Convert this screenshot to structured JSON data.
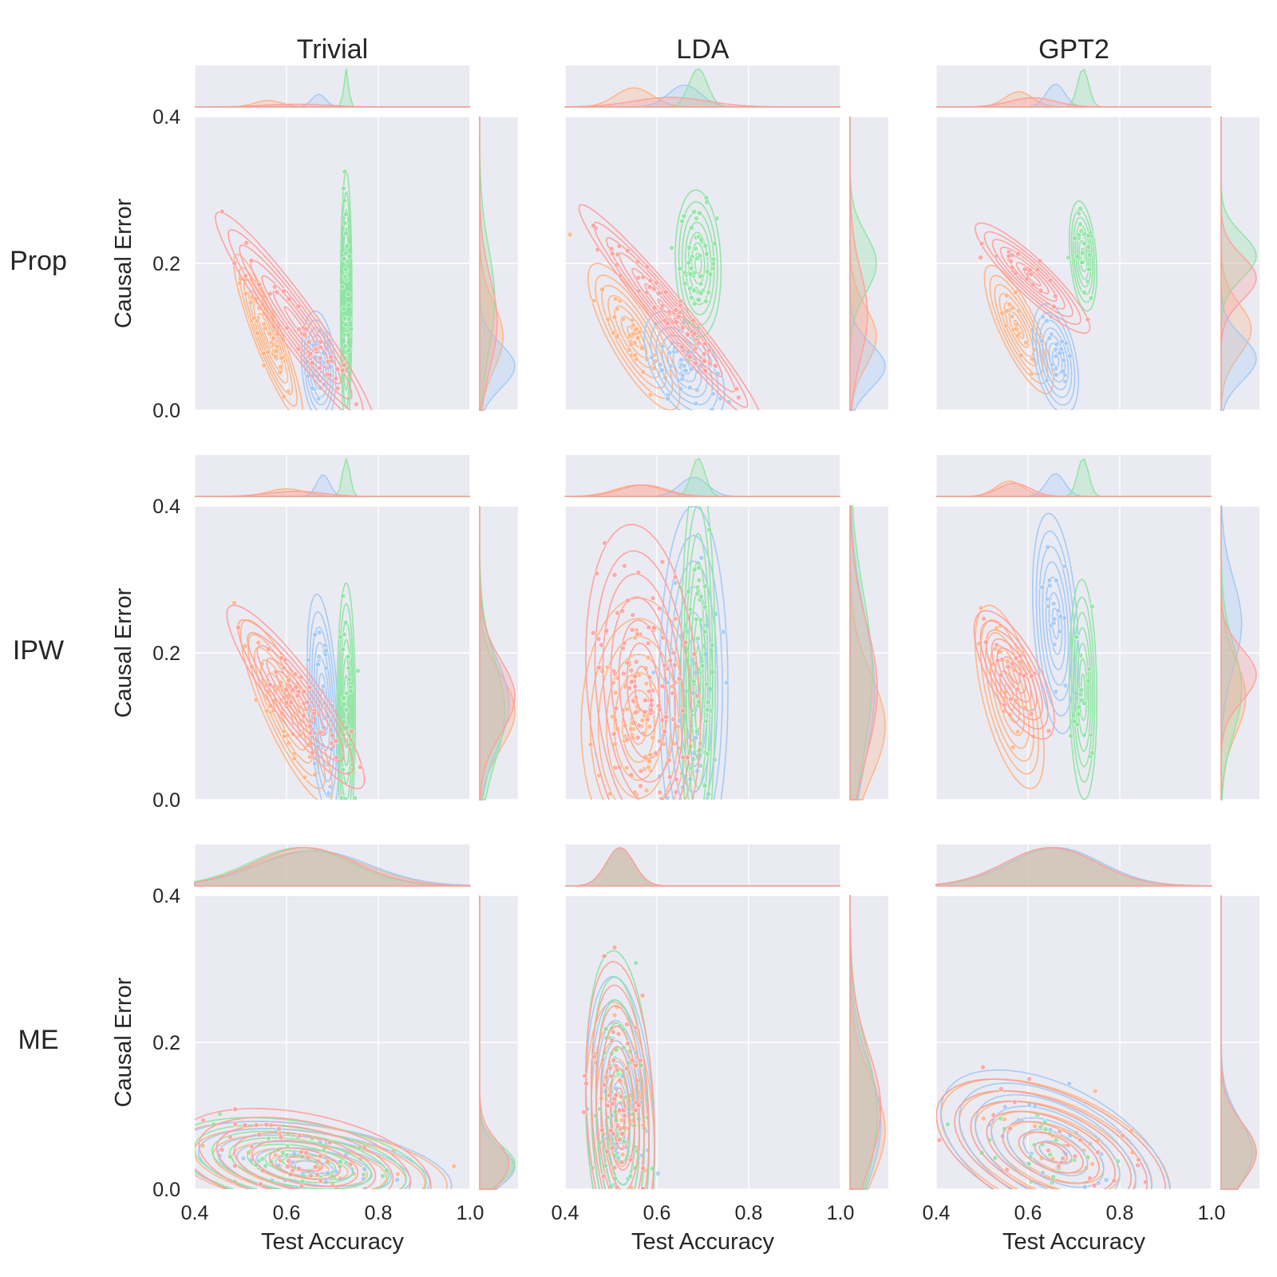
{
  "chart_data": {
    "type": "jointplot-grid",
    "columns": [
      "Trivial",
      "LDA",
      "GPT2"
    ],
    "rows": [
      "Prop",
      "IPW",
      "ME"
    ],
    "xlabel": "Test Accuracy",
    "ylabel": "Causal Error",
    "xlim": [
      0.4,
      1.0
    ],
    "ylim": [
      0.0,
      0.4
    ],
    "xticks": [
      "0.4",
      "0.6",
      "0.8",
      "1.0"
    ],
    "yticks": [
      "0.0",
      "0.2",
      "0.4"
    ],
    "palette": {
      "orange": "#ffb482",
      "blue": "#a1c9f4",
      "green": "#8de5a1",
      "red": "#ff9f9b"
    },
    "panels": [
      {
        "row": "Prop",
        "col": "Trivial",
        "clusters": [
          {
            "color": "orange",
            "cx": 0.56,
            "cy": 0.1,
            "sx": 0.03,
            "sy": 0.045,
            "rho": -0.9,
            "n": 40
          },
          {
            "color": "blue",
            "cx": 0.67,
            "cy": 0.06,
            "sx": 0.015,
            "sy": 0.03,
            "rho": -0.2,
            "n": 30
          },
          {
            "color": "green",
            "cx": 0.73,
            "cy": 0.15,
            "sx": 0.005,
            "sy": 0.07,
            "rho": 0.0,
            "n": 30
          },
          {
            "color": "red",
            "cx": 0.62,
            "cy": 0.12,
            "sx": 0.07,
            "sy": 0.06,
            "rho": -0.95,
            "n": 40
          }
        ]
      },
      {
        "row": "Prop",
        "col": "LDA",
        "clusters": [
          {
            "color": "orange",
            "cx": 0.55,
            "cy": 0.1,
            "sx": 0.04,
            "sy": 0.04,
            "rho": -0.8,
            "n": 40
          },
          {
            "color": "blue",
            "cx": 0.66,
            "cy": 0.06,
            "sx": 0.035,
            "sy": 0.03,
            "rho": -0.5,
            "n": 50
          },
          {
            "color": "green",
            "cx": 0.69,
            "cy": 0.2,
            "sx": 0.02,
            "sy": 0.04,
            "rho": -0.1,
            "n": 60
          },
          {
            "color": "red",
            "cx": 0.63,
            "cy": 0.13,
            "sx": 0.08,
            "sy": 0.06,
            "rho": -0.97,
            "n": 70
          }
        ]
      },
      {
        "row": "Prop",
        "col": "GPT2",
        "clusters": [
          {
            "color": "orange",
            "cx": 0.58,
            "cy": 0.11,
            "sx": 0.03,
            "sy": 0.035,
            "rho": -0.8,
            "n": 25
          },
          {
            "color": "blue",
            "cx": 0.66,
            "cy": 0.07,
            "sx": 0.02,
            "sy": 0.03,
            "rho": -0.4,
            "n": 25
          },
          {
            "color": "green",
            "cx": 0.72,
            "cy": 0.21,
            "sx": 0.012,
            "sy": 0.03,
            "rho": -0.3,
            "n": 25
          },
          {
            "color": "red",
            "cx": 0.61,
            "cy": 0.18,
            "sx": 0.05,
            "sy": 0.03,
            "rho": -0.9,
            "n": 25
          }
        ]
      },
      {
        "row": "IPW",
        "col": "Trivial",
        "clusters": [
          {
            "color": "orange",
            "cx": 0.6,
            "cy": 0.12,
            "sx": 0.04,
            "sy": 0.05,
            "rho": -0.85,
            "n": 40
          },
          {
            "color": "blue",
            "cx": 0.68,
            "cy": 0.13,
            "sx": 0.014,
            "sy": 0.06,
            "rho": -0.4,
            "n": 30
          },
          {
            "color": "green",
            "cx": 0.73,
            "cy": 0.12,
            "sx": 0.008,
            "sy": 0.07,
            "rho": 0.0,
            "n": 30
          },
          {
            "color": "red",
            "cx": 0.62,
            "cy": 0.14,
            "sx": 0.06,
            "sy": 0.05,
            "rho": -0.9,
            "n": 35
          }
        ]
      },
      {
        "row": "IPW",
        "col": "LDA",
        "clusters": [
          {
            "color": "orange",
            "cx": 0.56,
            "cy": 0.1,
            "sx": 0.05,
            "sy": 0.07,
            "rho": 0.0,
            "n": 80
          },
          {
            "color": "blue",
            "cx": 0.68,
            "cy": 0.15,
            "sx": 0.03,
            "sy": 0.1,
            "rho": 0.0,
            "n": 40
          },
          {
            "color": "green",
            "cx": 0.69,
            "cy": 0.17,
            "sx": 0.015,
            "sy": 0.11,
            "rho": 0.0,
            "n": 50
          },
          {
            "color": "red",
            "cx": 0.57,
            "cy": 0.15,
            "sx": 0.05,
            "sy": 0.09,
            "rho": -0.2,
            "n": 100
          }
        ]
      },
      {
        "row": "IPW",
        "col": "GPT2",
        "clusters": [
          {
            "color": "orange",
            "cx": 0.56,
            "cy": 0.14,
            "sx": 0.03,
            "sy": 0.05,
            "rho": -0.6,
            "n": 20
          },
          {
            "color": "blue",
            "cx": 0.66,
            "cy": 0.24,
            "sx": 0.02,
            "sy": 0.06,
            "rho": -0.3,
            "n": 20
          },
          {
            "color": "green",
            "cx": 0.72,
            "cy": 0.15,
            "sx": 0.012,
            "sy": 0.06,
            "rho": -0.1,
            "n": 20
          },
          {
            "color": "red",
            "cx": 0.57,
            "cy": 0.17,
            "sx": 0.035,
            "sy": 0.035,
            "rho": -0.7,
            "n": 20
          }
        ]
      },
      {
        "row": "ME",
        "col": "Trivial",
        "clusters": [
          {
            "color": "orange",
            "cx": 0.65,
            "cy": 0.03,
            "sx": 0.12,
            "sy": 0.025,
            "rho": -0.4,
            "n": 35
          },
          {
            "color": "blue",
            "cx": 0.66,
            "cy": 0.03,
            "sx": 0.12,
            "sy": 0.025,
            "rho": -0.4,
            "n": 30
          },
          {
            "color": "green",
            "cx": 0.63,
            "cy": 0.035,
            "sx": 0.11,
            "sy": 0.025,
            "rho": -0.4,
            "n": 35
          },
          {
            "color": "red",
            "cx": 0.64,
            "cy": 0.035,
            "sx": 0.11,
            "sy": 0.03,
            "rho": -0.4,
            "n": 40
          }
        ]
      },
      {
        "row": "ME",
        "col": "LDA",
        "clusters": [
          {
            "color": "orange",
            "cx": 0.52,
            "cy": 0.08,
            "sx": 0.03,
            "sy": 0.07,
            "rho": -0.2,
            "n": 50
          },
          {
            "color": "blue",
            "cx": 0.52,
            "cy": 0.09,
            "sx": 0.03,
            "sy": 0.08,
            "rho": -0.2,
            "n": 40
          },
          {
            "color": "green",
            "cx": 0.52,
            "cy": 0.1,
            "sx": 0.03,
            "sy": 0.09,
            "rho": -0.2,
            "n": 50
          },
          {
            "color": "red",
            "cx": 0.52,
            "cy": 0.11,
            "sx": 0.03,
            "sy": 0.08,
            "rho": -0.2,
            "n": 60
          }
        ]
      },
      {
        "row": "ME",
        "col": "GPT2",
        "clusters": [
          {
            "color": "orange",
            "cx": 0.66,
            "cy": 0.05,
            "sx": 0.1,
            "sy": 0.04,
            "rho": -0.5,
            "n": 25
          },
          {
            "color": "blue",
            "cx": 0.66,
            "cy": 0.05,
            "sx": 0.1,
            "sy": 0.045,
            "rho": -0.5,
            "n": 25
          },
          {
            "color": "green",
            "cx": 0.65,
            "cy": 0.05,
            "sx": 0.1,
            "sy": 0.04,
            "rho": -0.5,
            "n": 25
          },
          {
            "color": "red",
            "cx": 0.65,
            "cy": 0.05,
            "sx": 0.1,
            "sy": 0.04,
            "rho": -0.5,
            "n": 25
          }
        ]
      }
    ]
  }
}
